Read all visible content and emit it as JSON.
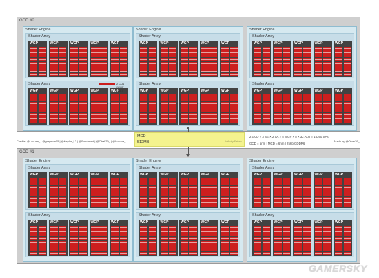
{
  "gcds": [
    {
      "label": "GCD #0"
    },
    {
      "label": "GCD #1"
    }
  ],
  "shader_engine_label": "Shader Engine",
  "shader_array_label": "Shader Array",
  "wgp_label": "WGP",
  "cu_label": "SIMD32",
  "legend": {
    "text": "2 CUs /WGP (est.)"
  },
  "mcd": {
    "title": "MCD",
    "size": "512MB",
    "right_text": "Infinity Fabric"
  },
  "credits": "Credits: @Locuza_  |  @greymon55  |  @Kepler_L2  |  @Bondrewd  |  @Olrak29_  |  @Locuza_",
  "specs": {
    "line1": "2 GCD × 3 SE × 2 SA × 5 WGP × 8 × 32 ALU = 15360 SPs",
    "line2": "GCD = 5nm  |  MCD = 6nm  |  256b GDDR6"
  },
  "made_by": "Made by @Olrak29_",
  "watermark": "GAMERSKY",
  "colors": {
    "gcd_bg": "#cfcfcf",
    "shader_engine_bg": "#d6e9f0",
    "wgp_bg": "#424242",
    "compute_unit": "#cc1f1f",
    "mcd_bg": "#f4f38e"
  }
}
